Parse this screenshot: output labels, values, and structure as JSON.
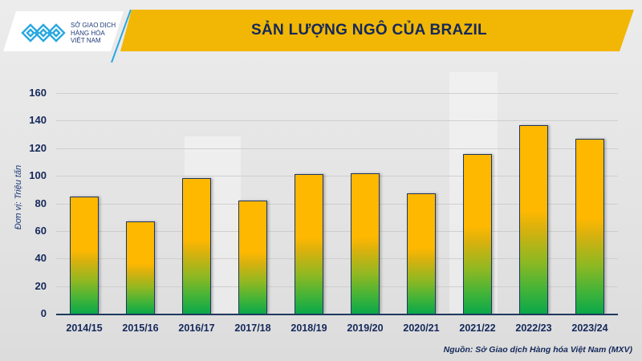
{
  "header": {
    "title": "SẢN LƯỢNG NGÔ CỦA BRAZIL",
    "logo_lines": [
      "SỞ GIAO DỊCH",
      "HÀNG HÓA",
      "VIỆT NAM"
    ],
    "title_band_color": "#f2b705",
    "title_color": "#14285a"
  },
  "axis": {
    "ylabel": "Đơn vị: Triệu tấn",
    "yticks": [
      "160",
      "140",
      "120",
      "100",
      "80",
      "60",
      "40",
      "20",
      "0"
    ]
  },
  "source": "Nguồn: Sở Giao dịch Hàng hóa Việt Nam (MXV)",
  "chart_data": {
    "type": "bar",
    "title": "SẢN LƯỢNG NGÔ CỦA BRAZIL",
    "xlabel": "",
    "ylabel": "Đơn vị: Triệu tấn",
    "ylim": [
      0,
      160
    ],
    "yticks": [
      0,
      20,
      40,
      60,
      80,
      100,
      120,
      140,
      160
    ],
    "grid": true,
    "legend": null,
    "categories": [
      "2014/15",
      "2015/16",
      "2016/17",
      "2017/18",
      "2018/19",
      "2019/20",
      "2020/21",
      "2021/22",
      "2022/23",
      "2023/24"
    ],
    "values": [
      85,
      67,
      98.5,
      82,
      101,
      102,
      87,
      116,
      137,
      127
    ],
    "bar_gradient": [
      "#ffb800",
      "#0aa84a"
    ],
    "source": "Nguồn: Sở Giao dịch Hàng hóa Việt Nam (MXV)"
  }
}
